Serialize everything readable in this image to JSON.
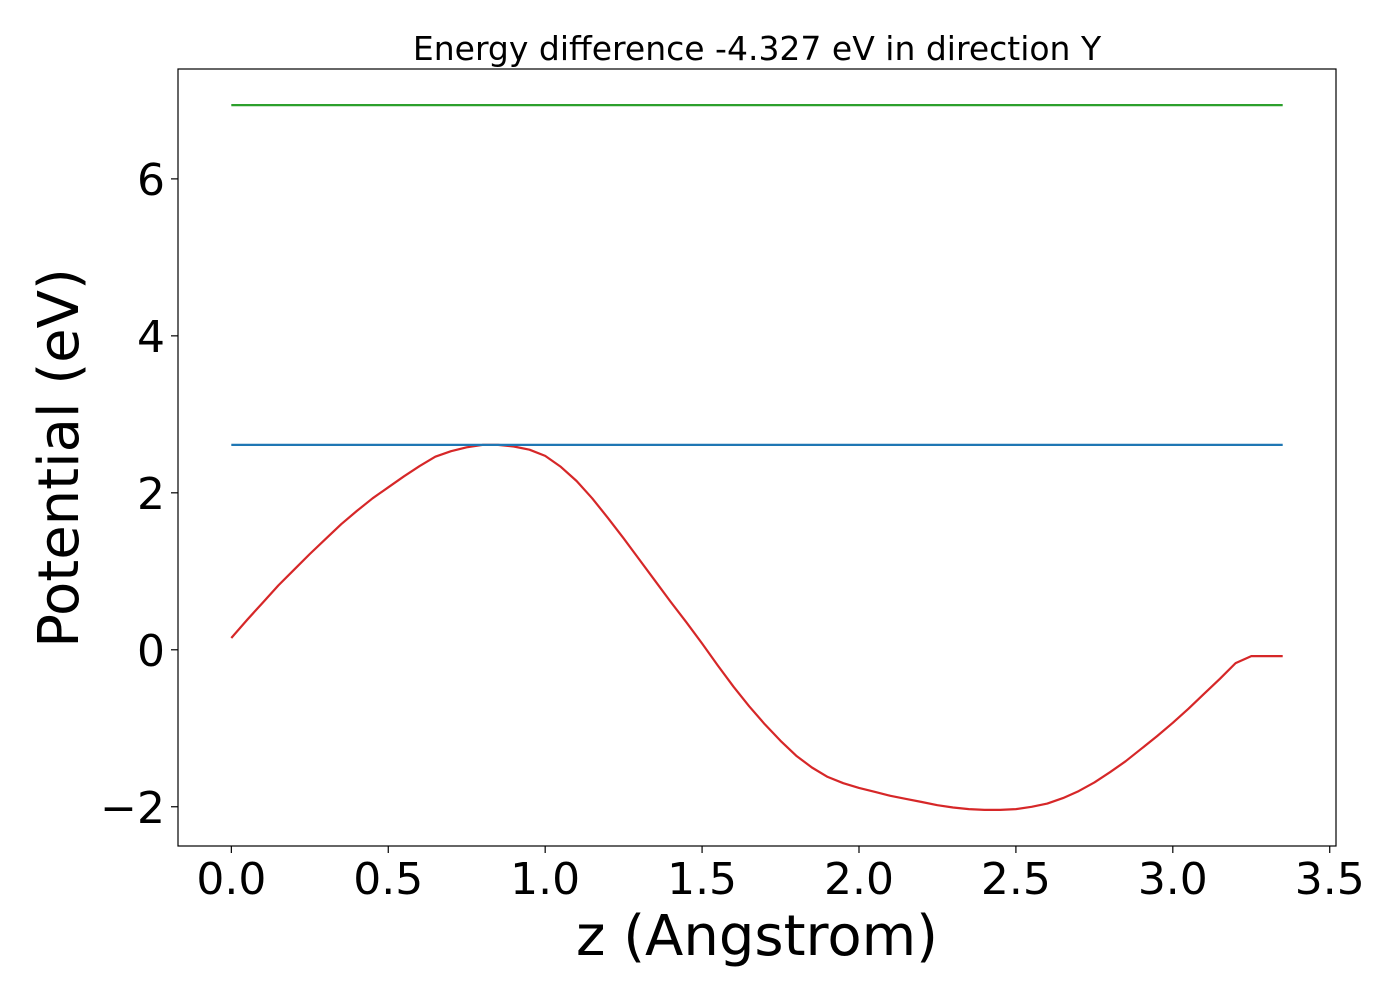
{
  "chart_data": {
    "type": "line",
    "title": "Energy difference -4.327 eV in direction Y",
    "xlabel": "z (Angstrom)",
    "ylabel": "Potential (eV)",
    "xlim": [
      -0.17,
      3.52
    ],
    "ylim": [
      -2.5,
      7.4
    ],
    "xticks": [
      0.0,
      0.5,
      1.0,
      1.5,
      2.0,
      2.5,
      3.0,
      3.5
    ],
    "xtick_labels": [
      "0.0",
      "0.5",
      "1.0",
      "1.5",
      "2.0",
      "2.5",
      "3.0",
      "3.5"
    ],
    "yticks": [
      -2,
      0,
      2,
      4,
      6
    ],
    "ytick_labels": [
      "−2",
      "0",
      "2",
      "4",
      "6"
    ],
    "grid": false,
    "series": [
      {
        "color": "#d62728",
        "x": [
          0.0,
          0.05,
          0.1,
          0.15,
          0.2,
          0.25,
          0.3,
          0.35,
          0.4,
          0.45,
          0.5,
          0.55,
          0.6,
          0.65,
          0.7,
          0.75,
          0.8,
          0.85,
          0.9,
          0.95,
          1.0,
          1.05,
          1.1,
          1.15,
          1.2,
          1.25,
          1.3,
          1.35,
          1.4,
          1.45,
          1.5,
          1.55,
          1.6,
          1.65,
          1.7,
          1.75,
          1.8,
          1.85,
          1.9,
          1.95,
          2.0,
          2.05,
          2.1,
          2.15,
          2.2,
          2.25,
          2.3,
          2.35,
          2.4,
          2.45,
          2.5,
          2.55,
          2.6,
          2.65,
          2.7,
          2.75,
          2.8,
          2.85,
          2.9,
          2.95,
          3.0,
          3.05,
          3.1,
          3.15,
          3.2,
          3.25,
          3.3,
          3.35
        ],
        "y": [
          0.15,
          0.38,
          0.6,
          0.82,
          1.02,
          1.22,
          1.41,
          1.6,
          1.77,
          1.93,
          2.07,
          2.21,
          2.34,
          2.46,
          2.53,
          2.58,
          2.61,
          2.61,
          2.59,
          2.55,
          2.47,
          2.33,
          2.15,
          1.93,
          1.68,
          1.42,
          1.15,
          0.88,
          0.61,
          0.35,
          0.08,
          -0.2,
          -0.47,
          -0.72,
          -0.95,
          -1.16,
          -1.35,
          -1.5,
          -1.62,
          -1.7,
          -1.76,
          -1.81,
          -1.86,
          -1.9,
          -1.94,
          -1.98,
          -2.01,
          -2.03,
          -2.04,
          -2.04,
          -2.03,
          -2.0,
          -1.96,
          -1.89,
          -1.8,
          -1.69,
          -1.56,
          -1.42,
          -1.26,
          -1.1,
          -0.93,
          -0.75,
          -0.56,
          -0.37,
          -0.17,
          -0.08,
          -0.08,
          -0.08
        ]
      },
      {
        "color": "#1f77b4",
        "x": [
          0.0,
          3.35
        ],
        "y": [
          2.61,
          2.61
        ]
      },
      {
        "color": "#2ca02c",
        "x": [
          0.0,
          3.35
        ],
        "y": [
          6.94,
          6.94
        ]
      }
    ]
  }
}
